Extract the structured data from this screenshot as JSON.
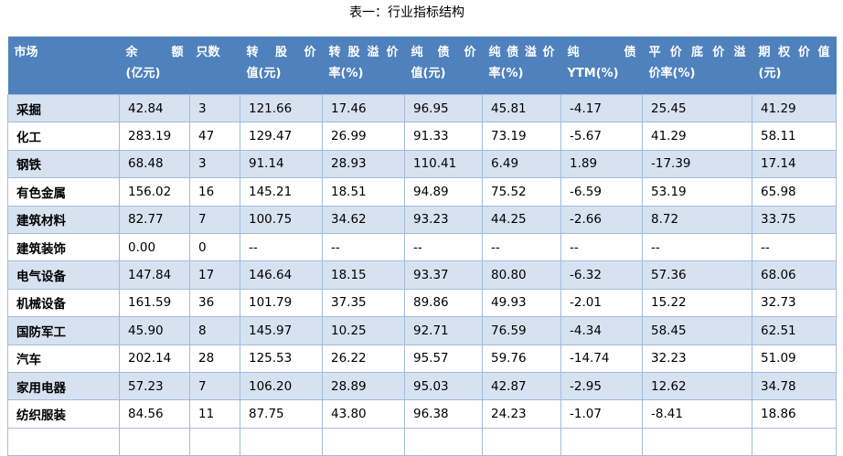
{
  "title": "表一：行业指标结构",
  "colors": {
    "header_bg": "#4F81BD",
    "header_text": "#FFFFFF",
    "row_shaded": "#D6E2F0",
    "row_plain": "#FFFFFF",
    "border": "#A3BBDE",
    "text": "#000000"
  },
  "table": {
    "columns": [
      {
        "line1": "市场",
        "line2": "",
        "width": 122,
        "justify": false
      },
      {
        "line1": "余额",
        "line2": "(亿元)",
        "width": 77,
        "justify": true
      },
      {
        "line1": "只数",
        "line2": "",
        "width": 55,
        "justify": false
      },
      {
        "line1": "转股价",
        "line2": "值(元)",
        "width": 90,
        "justify": true
      },
      {
        "line1": "转股溢价",
        "line2": "率(%)",
        "width": 90,
        "justify": true
      },
      {
        "line1": "纯债价",
        "line2": "值(元)",
        "width": 85,
        "justify": true
      },
      {
        "line1": "纯债溢价",
        "line2": "率(%)",
        "width": 86,
        "justify": true
      },
      {
        "line1": "纯债",
        "line2": "YTM(%)",
        "width": 89,
        "justify": true
      },
      {
        "line1": "平价底价溢",
        "line2": "价率(%)",
        "width": 120,
        "justify": true
      },
      {
        "line1": "期权价值",
        "line2": "(元)",
        "width": 92,
        "justify": true
      }
    ],
    "rows": [
      {
        "market": "采掘",
        "shaded": true,
        "values": [
          "42.84",
          "3",
          "121.66",
          "17.46",
          "96.95",
          "45.81",
          "-4.17",
          "25.45",
          "41.29"
        ]
      },
      {
        "market": "化工",
        "shaded": false,
        "values": [
          "283.19",
          "47",
          "129.47",
          "26.99",
          "91.33",
          "73.19",
          "-5.67",
          "41.29",
          "58.11"
        ]
      },
      {
        "market": "钢铁",
        "shaded": true,
        "values": [
          "68.48",
          "3",
          "91.14",
          "28.93",
          "110.41",
          "6.49",
          "1.89",
          "-17.39",
          "17.14"
        ]
      },
      {
        "market": "有色金属",
        "shaded": false,
        "values": [
          "156.02",
          "16",
          "145.21",
          "18.51",
          "94.89",
          "75.52",
          "-6.59",
          "53.19",
          "65.98"
        ]
      },
      {
        "market": "建筑材料",
        "shaded": true,
        "values": [
          "82.77",
          "7",
          "100.75",
          "34.62",
          "93.23",
          "44.25",
          "-2.66",
          "8.72",
          "33.75"
        ]
      },
      {
        "market": "建筑装饰",
        "shaded": false,
        "values": [
          "0.00",
          "0",
          "--",
          "--",
          "--",
          "--",
          "--",
          "--",
          "--"
        ]
      },
      {
        "market": "电气设备",
        "shaded": true,
        "values": [
          "147.84",
          "17",
          "146.64",
          "18.15",
          "93.37",
          "80.80",
          "-6.32",
          "57.36",
          "68.06"
        ]
      },
      {
        "market": "机械设备",
        "shaded": false,
        "values": [
          "161.59",
          "36",
          "101.79",
          "37.35",
          "89.86",
          "49.93",
          "-2.01",
          "15.22",
          "32.73"
        ]
      },
      {
        "market": "国防军工",
        "shaded": true,
        "values": [
          "45.90",
          "8",
          "145.97",
          "10.25",
          "92.71",
          "76.59",
          "-4.34",
          "58.45",
          "62.51"
        ]
      },
      {
        "market": "汽车",
        "shaded": false,
        "values": [
          "202.14",
          "28",
          "125.53",
          "26.22",
          "95.57",
          "59.76",
          "-14.74",
          "32.23",
          "51.09"
        ]
      },
      {
        "market": "家用电器",
        "shaded": true,
        "values": [
          "57.23",
          "7",
          "106.20",
          "28.89",
          "95.03",
          "42.87",
          "-2.95",
          "12.62",
          "34.78"
        ]
      },
      {
        "market": "纺织服装",
        "shaded": false,
        "values": [
          "84.56",
          "11",
          "87.75",
          "43.80",
          "96.38",
          "24.23",
          "-1.07",
          "-8.41",
          "18.86"
        ]
      }
    ],
    "partial_row": {
      "shaded": false
    }
  }
}
